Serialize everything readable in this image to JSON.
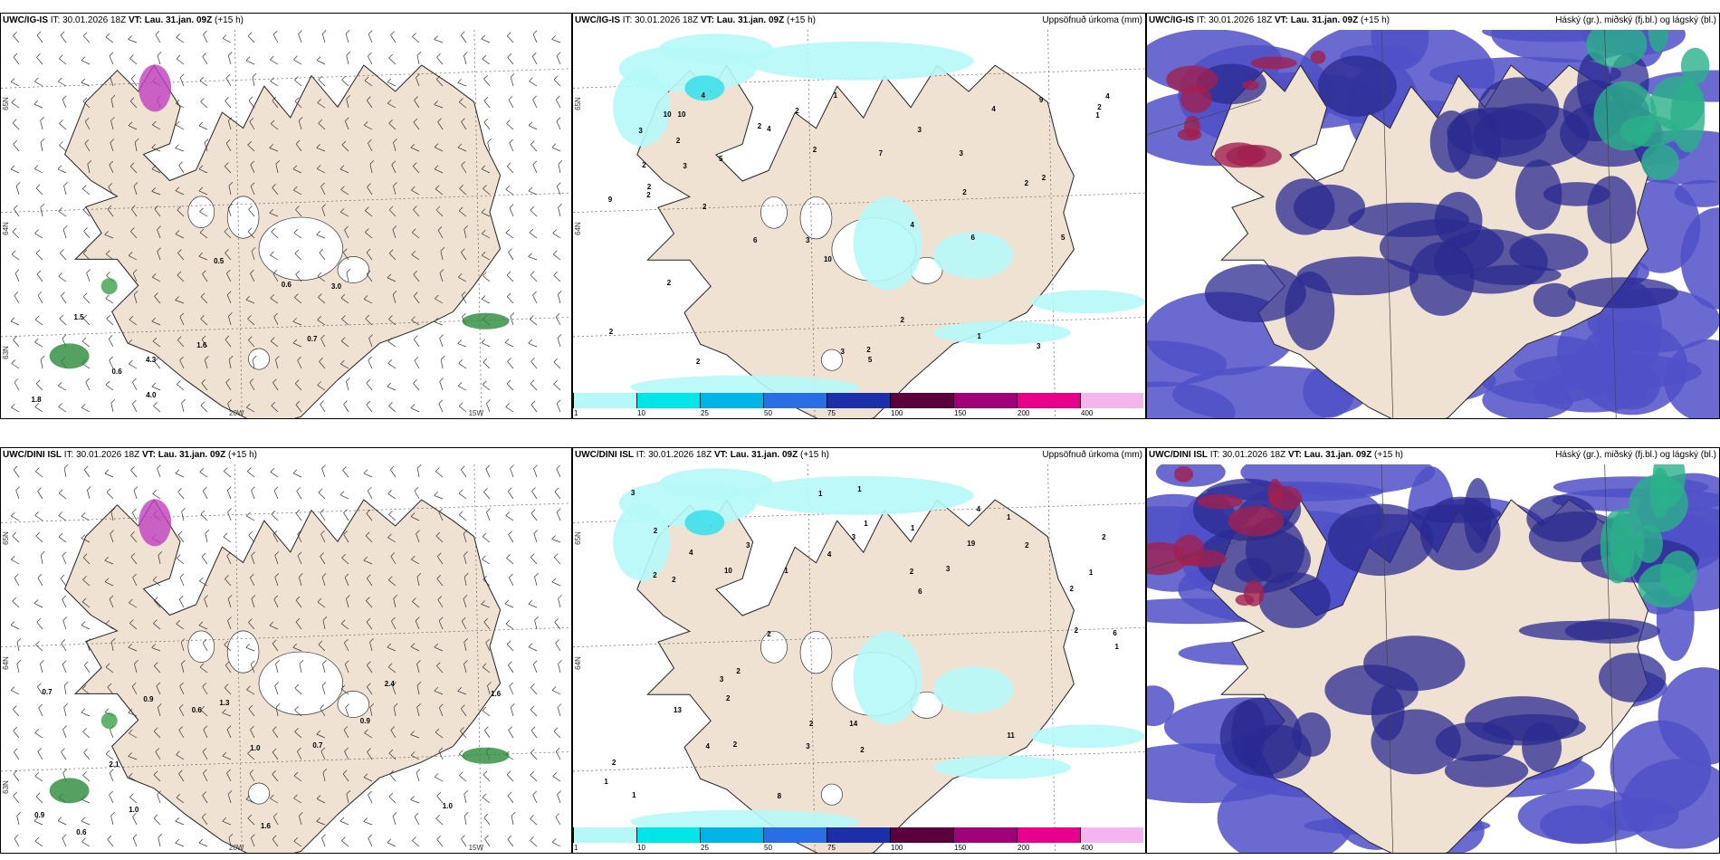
{
  "panels": [
    {
      "id": "p1",
      "model": "UWC/IG-IS",
      "it_label": "IT:",
      "it_value": "30.01.2026 18Z",
      "vt_label": "VT:",
      "vt_value": "Lau. 31.jan. 09Z",
      "lead": "(+15 h)",
      "right_title": "",
      "type": "wind",
      "lat_labels": [
        "65N",
        "64N",
        "63N"
      ],
      "lon_labels": [
        "20W",
        "15W"
      ],
      "values": [
        "0.6",
        "0.7",
        "1.6",
        "1.5",
        "0.5",
        "0.6",
        "1.8",
        "3.0",
        "4.0",
        "4.3"
      ]
    },
    {
      "id": "p2",
      "model": "UWC/IG-IS",
      "it_label": "IT:",
      "it_value": "30.01.2026 18Z",
      "vt_label": "VT:",
      "vt_value": "Lau. 31.jan. 09Z",
      "lead": "(+15 h)",
      "right_title": "Uppsöfnuð úrkoma (mm)",
      "type": "precip",
      "lat_labels": [
        "65N",
        "64N"
      ],
      "values": [
        "5",
        "3",
        "2",
        "2",
        "6",
        "5",
        "3",
        "2",
        "10",
        "10",
        "2",
        "1",
        "1",
        "2",
        "2",
        "2",
        "4",
        "4",
        "3",
        "3",
        "2",
        "2",
        "2",
        "4",
        "9",
        "10",
        "2",
        "3",
        "2",
        "4",
        "3",
        "2",
        "1",
        "2",
        "2",
        "9",
        "7",
        "5",
        "6",
        "4",
        "2",
        "3",
        "2"
      ]
    },
    {
      "id": "p3",
      "model": "UWC/IG-IS",
      "it_label": "IT:",
      "it_value": "30.01.2026 18Z",
      "vt_label": "VT:",
      "vt_value": "Lau. 31.jan. 09Z",
      "lead": "(+15 h)",
      "right_title": "Háský (gr.), miðský (fj.bl.) og lágský (bl.)",
      "type": "cloud"
    },
    {
      "id": "p4",
      "model": "UWC/DINI ISL",
      "it_label": "IT:",
      "it_value": "30.01.2026 18Z",
      "vt_label": "VT:",
      "vt_value": "Lau. 31.jan. 09Z",
      "lead": "(+15 h)",
      "right_title": "",
      "type": "wind",
      "lat_labels": [
        "65N",
        "64N",
        "63N"
      ],
      "lon_labels": [
        "20W",
        "15W"
      ],
      "values": [
        "0.7",
        "1.6",
        "1.3",
        "2.4",
        "0.6",
        "0.9",
        "1.0",
        "0.9",
        "1.0",
        "0.6",
        "0.7",
        "0.9",
        "1.0",
        "1.6",
        "2.1"
      ]
    },
    {
      "id": "p5",
      "model": "UWC/DINI ISL",
      "it_label": "IT:",
      "it_value": "30.01.2026 18Z",
      "vt_label": "VT:",
      "vt_value": "Lau. 31.jan. 09Z",
      "lead": "(+15 h)",
      "right_title": "Uppsöfnuð úrkoma (mm)",
      "type": "precip",
      "lat_labels": [
        "65N",
        "64N"
      ],
      "values": [
        "2",
        "1",
        "4",
        "2",
        "2",
        "3",
        "14",
        "10",
        "19",
        "2",
        "2",
        "2",
        "4",
        "3",
        "2",
        "2",
        "2",
        "1",
        "2",
        "2",
        "3",
        "2",
        "1",
        "2",
        "2",
        "4",
        "2",
        "3",
        "1",
        "1",
        "1",
        "1",
        "1",
        "1",
        "1",
        "4",
        "8",
        "6",
        "3",
        "11",
        "13",
        "6",
        "3"
      ]
    },
    {
      "id": "p6",
      "model": "UWC/DINI ISL",
      "it_label": "IT:",
      "it_value": "30.01.2026 18Z",
      "vt_label": "VT:",
      "vt_value": "Lau. 31.jan. 09Z",
      "lead": "(+15 h)",
      "right_title": "Háský (gr.), miðský (fj.bl.) og lágský (bl.)",
      "type": "cloud"
    }
  ],
  "colorbar": {
    "labels": [
      "1",
      "10",
      "25",
      "50",
      "75",
      "100",
      "150",
      "200",
      "400"
    ],
    "colors": [
      "#b6f8f8",
      "#00e6e6",
      "#00b4e6",
      "#2a6ee6",
      "#1c2fa8",
      "#5a003c",
      "#a00078",
      "#e6008c",
      "#f4b4ee"
    ]
  },
  "colors": {
    "land": "#efe2d2",
    "ice": "#ffffff",
    "precip_light": "#b6f8f8",
    "precip_mid": "#40e0ea",
    "cloud_low": "#5050c8",
    "cloud_mid": "#2a2a90",
    "cloud_high": "#a02050",
    "cloud_green": "#2ab08a"
  }
}
